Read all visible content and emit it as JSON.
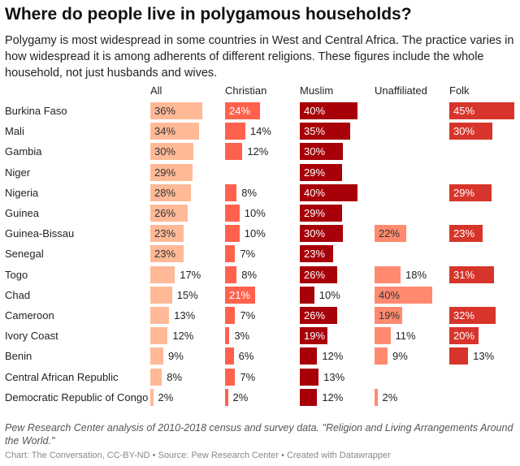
{
  "title": "Where do people live in polygamous households?",
  "subtitle": "Polygamy is most widespread in some countries in West and Central Africa. The practice varies in how widespread it is among adherents of different religions. These figures include the whole household, not just husbands and wives.",
  "notes": "Pew Research Center analysis of 2010-2018 census and survey data. \"Religion and Living Arrangements Around the World.\"",
  "footer": "Chart: The Conversation, CC-BY-ND • Source: Pew Research Center • Created with Datawrapper",
  "chart_data": {
    "type": "bar",
    "categories": [
      "Burkina Faso",
      "Mali",
      "Gambia",
      "Niger",
      "Nigeria",
      "Guinea",
      "Guinea-Bissau",
      "Senegal",
      "Togo",
      "Chad",
      "Cameroon",
      "Ivory Coast",
      "Benin",
      "Central African Republic",
      "Democratic Republic of Congo"
    ],
    "series": [
      {
        "name": "All",
        "color": "#ffb997",
        "values": [
          36,
          34,
          30,
          29,
          28,
          26,
          23,
          23,
          17,
          15,
          13,
          12,
          9,
          8,
          2
        ]
      },
      {
        "name": "Christian",
        "color": "#ff614d",
        "values": [
          24,
          14,
          12,
          null,
          8,
          10,
          10,
          7,
          8,
          21,
          7,
          3,
          6,
          7,
          2
        ]
      },
      {
        "name": "Muslim",
        "color": "#a70008",
        "values": [
          40,
          35,
          30,
          29,
          40,
          29,
          30,
          23,
          26,
          10,
          26,
          19,
          12,
          13,
          12
        ]
      },
      {
        "name": "Unaffiliated",
        "color": "#ff8a70",
        "values": [
          null,
          null,
          null,
          null,
          null,
          null,
          22,
          null,
          18,
          40,
          19,
          11,
          9,
          null,
          2
        ]
      },
      {
        "name": "Folk",
        "color": "#d7352b",
        "values": [
          45,
          30,
          null,
          null,
          29,
          null,
          23,
          null,
          31,
          null,
          32,
          20,
          13,
          null,
          null
        ]
      }
    ],
    "value_suffix": "%",
    "xlim": [
      0,
      45
    ]
  }
}
